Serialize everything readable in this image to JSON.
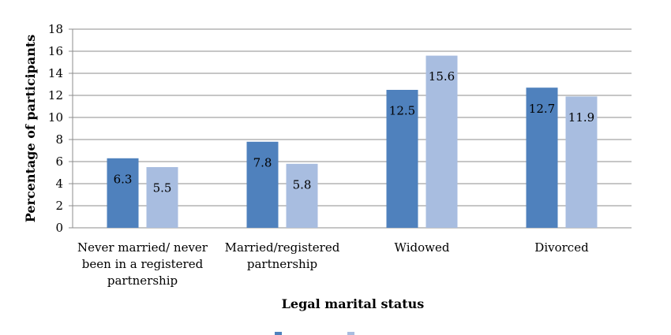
{
  "chart_data": {
    "type": "bar",
    "categories": [
      "Never married/ never been in a registered partnership",
      "Married/registered partnership",
      "Widowed",
      "Divorced"
    ],
    "category_lines": [
      [
        "Never married/ never",
        "been in a registered",
        "partnership"
      ],
      [
        "Married/registered",
        "partnership"
      ],
      [
        "Widowed"
      ],
      [
        "Divorced"
      ]
    ],
    "series": [
      {
        "name": "",
        "color": "#4f81bd",
        "values": [
          6.3,
          7.8,
          12.5,
          12.7
        ]
      },
      {
        "name": "",
        "color": "#a8bde0",
        "values": [
          5.5,
          5.8,
          15.6,
          11.9
        ]
      }
    ],
    "data_labels": [
      [
        "6.3",
        "7.8",
        "12.5",
        "12.7"
      ],
      [
        "5.5",
        "5.8",
        "15.6",
        "11.9"
      ]
    ],
    "xlabel": "Legal marital status",
    "ylabel": "Percentage of participants",
    "ylim": [
      0,
      18
    ],
    "yticks": [
      0,
      2,
      4,
      6,
      8,
      10,
      12,
      14,
      16,
      18
    ],
    "grid": true,
    "legend_position": "bottom"
  }
}
